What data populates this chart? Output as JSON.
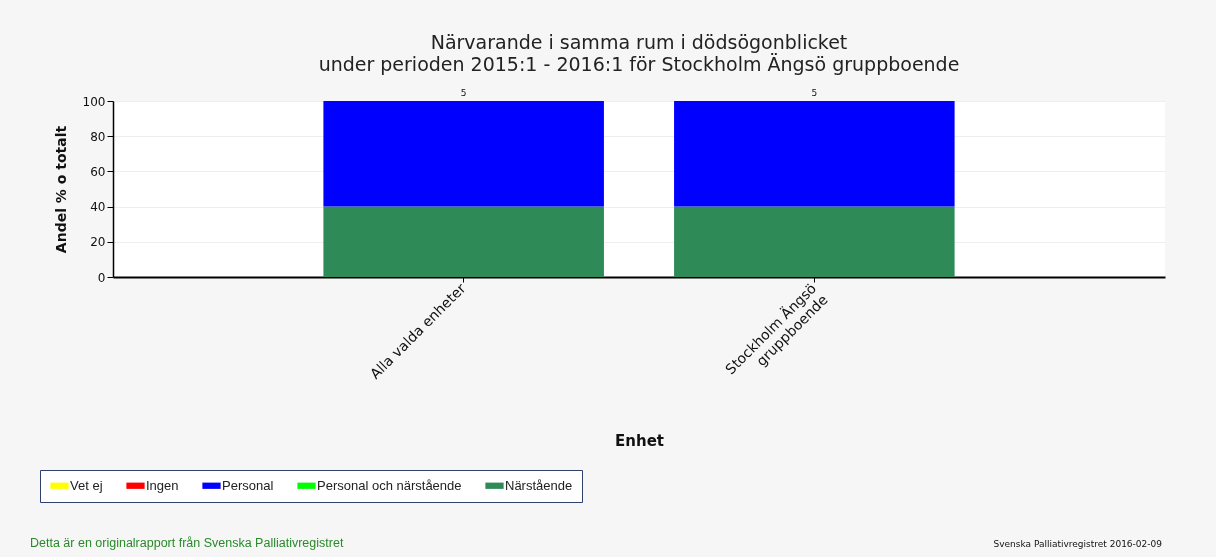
{
  "chart_data": {
    "type": "bar",
    "stacked": true,
    "title": "Närvarande i samma rum i dödsögonblicket",
    "subtitle": "under perioden 2015:1 - 2016:1 för Stockholm Ängsö gruppboende",
    "xlabel": "Enhet",
    "ylabel": "Andel % o totalt",
    "categories": [
      "Alla valda enheter",
      "Stockholm Ängsö gruppboende"
    ],
    "series": [
      {
        "name": "Närstående",
        "color": "#2e8b57",
        "values": [
          40,
          40
        ]
      },
      {
        "name": "Personal och närstående",
        "color": "#00ff00",
        "values": [
          0,
          0
        ]
      },
      {
        "name": "Personal",
        "color": "#0000ff",
        "values": [
          60,
          60
        ]
      },
      {
        "name": "Ingen",
        "color": "#ff0000",
        "values": [
          0,
          0
        ]
      },
      {
        "name": "Vet ej",
        "color": "#ffff00",
        "values": [
          0,
          0
        ]
      }
    ],
    "ylim": [
      0,
      100
    ],
    "yticks": [
      0,
      20,
      40,
      60,
      80,
      100
    ],
    "grid": "y",
    "legend": "bottom",
    "annotations": [
      {
        "text": "5",
        "x": "Alla valda enheter",
        "y": 100
      },
      {
        "text": "5",
        "x": "Stockholm Ängsö gruppboende",
        "y": 100
      },
      "Detta är en originalrapport från Svenska Palliativregistret",
      "Svenska Palliativregistret 2016-02-09"
    ]
  }
}
